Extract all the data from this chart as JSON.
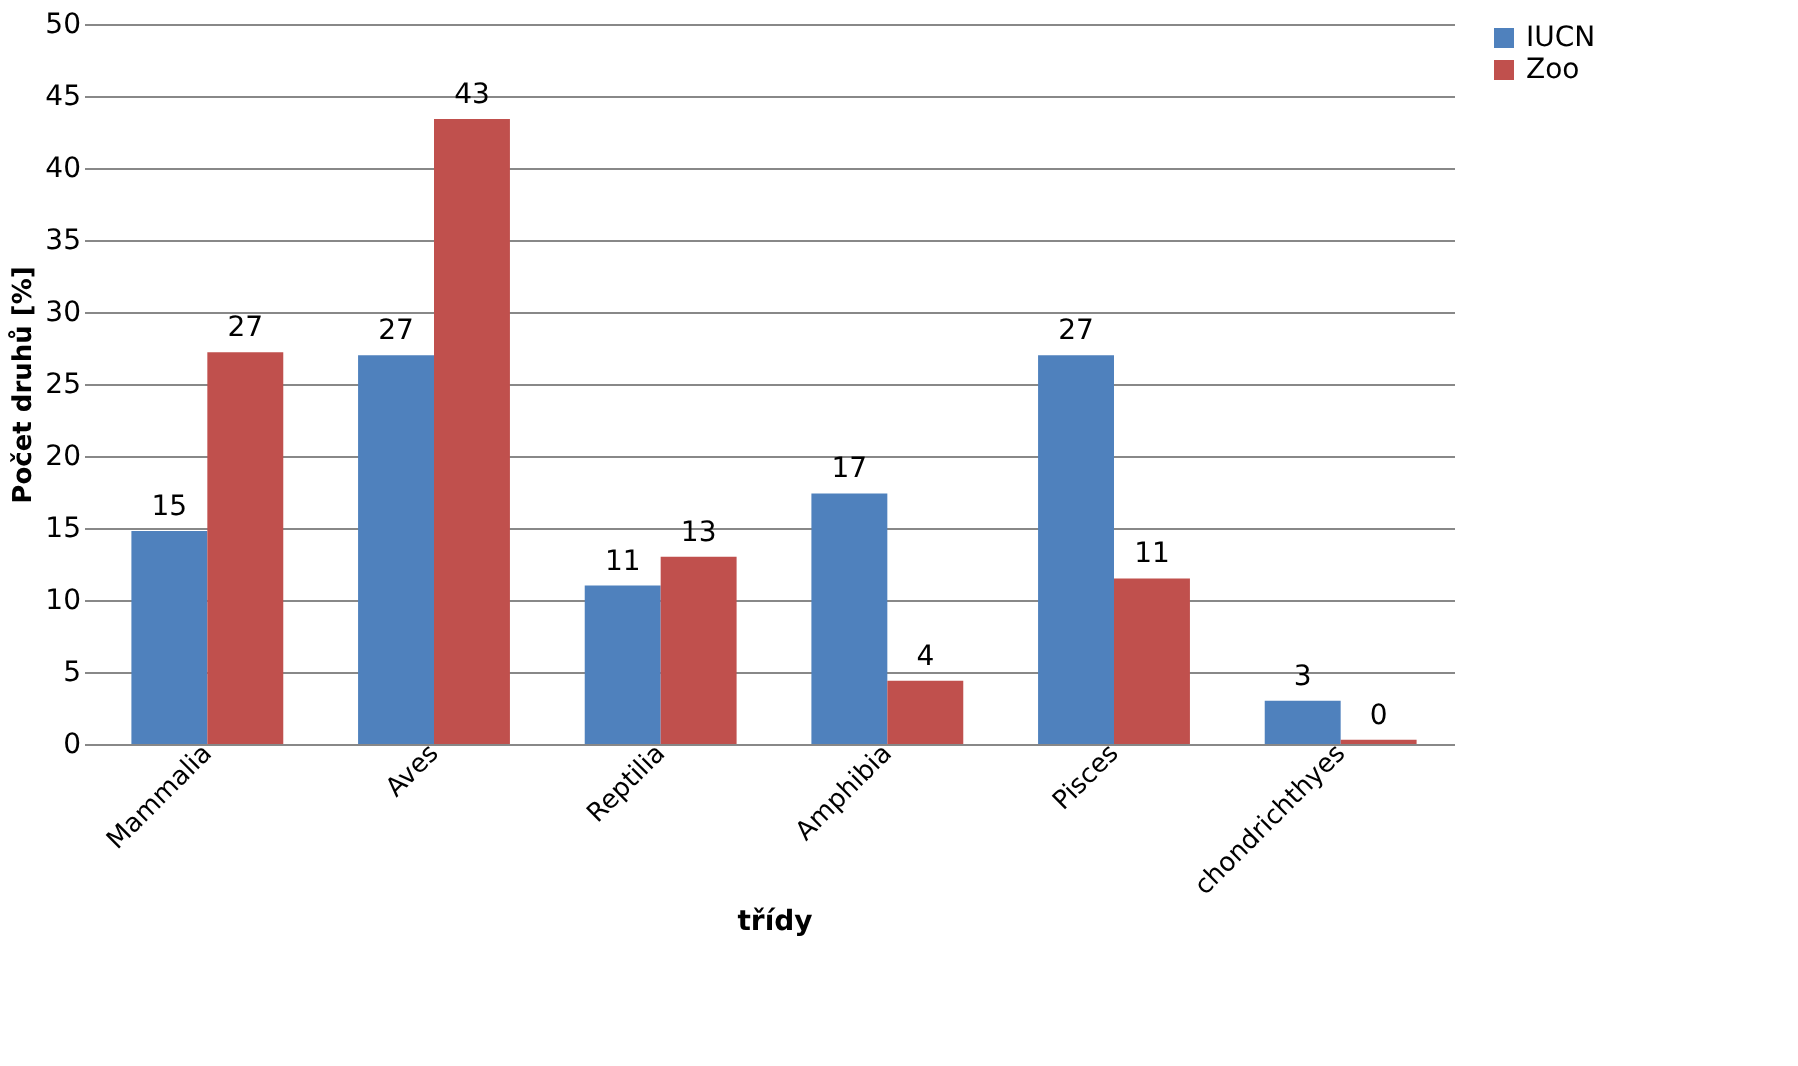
{
  "chart_data": {
    "type": "bar",
    "xlabel": "třídy",
    "ylabel": "Počet druhů [%]",
    "categories": [
      "Mammalia",
      "Aves",
      "Reptilia",
      "Amphibia",
      "Pisces",
      "chondrichthyes"
    ],
    "series": [
      {
        "name": "IUCN",
        "color": "#4f81bd",
        "values": [
          14.8,
          27,
          11,
          17.4,
          27,
          3
        ],
        "value_labels": [
          "15",
          "27",
          "11",
          "17",
          "27",
          "3"
        ]
      },
      {
        "name": "Zoo",
        "color": "#c0504d",
        "values": [
          27.2,
          43.4,
          13,
          4.4,
          11.5,
          0.3
        ],
        "value_labels": [
          "27",
          "43",
          "13",
          "4",
          "11",
          "0"
        ]
      }
    ],
    "ylim": [
      0,
      50
    ],
    "yticks": [
      0,
      5,
      10,
      15,
      20,
      25,
      30,
      35,
      40,
      45,
      50
    ],
    "grid": "y",
    "legend": "right"
  }
}
